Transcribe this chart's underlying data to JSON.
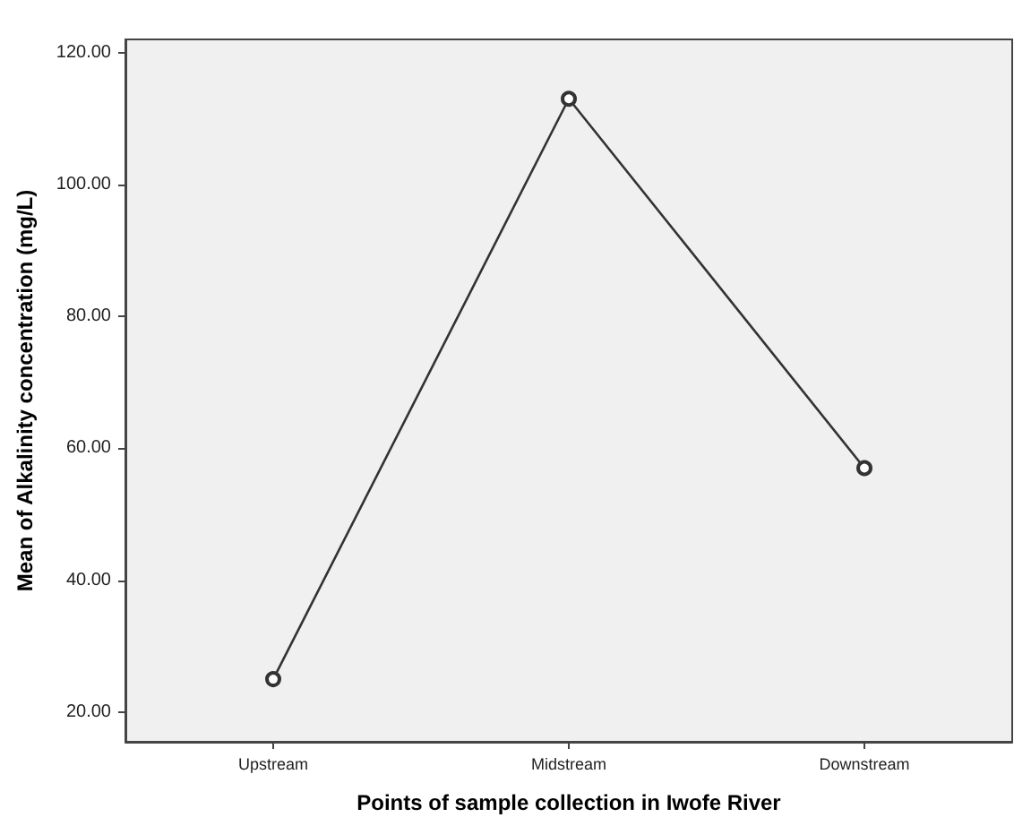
{
  "chart_data": {
    "type": "line",
    "xlabel": "Points of sample collection in Iwofe River",
    "ylabel": "Mean of Alkalinity concentration (mg/L)",
    "categories": [
      "Upstream",
      "Midstream",
      "Downstream"
    ],
    "series": [
      {
        "color": "#333333",
        "values": [
          25,
          113,
          57
        ]
      }
    ],
    "marker": "circle",
    "grid": false,
    "ylim": [
      15.5,
      122
    ],
    "yticks": [
      {
        "value": 20,
        "label": "20.00"
      },
      {
        "value": 40,
        "label": "40.00"
      },
      {
        "value": 60,
        "label": "60.00"
      },
      {
        "value": 80,
        "label": "80.00"
      },
      {
        "value": 100,
        "label": "100.00"
      },
      {
        "value": 120,
        "label": "120.00"
      }
    ]
  }
}
